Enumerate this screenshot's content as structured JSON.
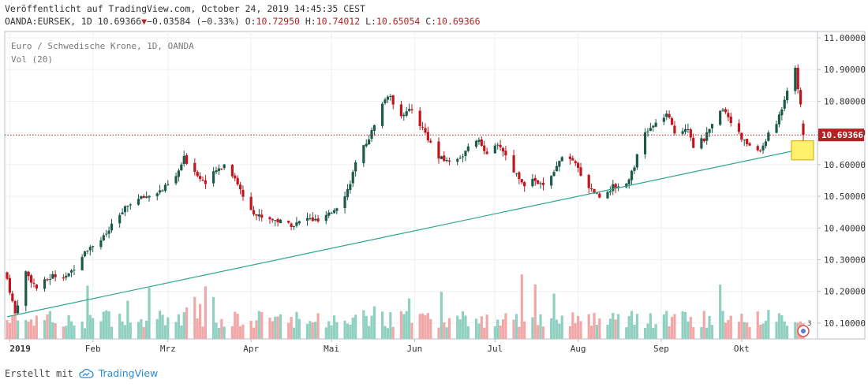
{
  "header": {
    "published": "Veröffentlicht auf TradingView.com, October 24, 2019 14:45:35 CEST",
    "symbol": "OANDA:EURSEK, 1D",
    "last": "10.69366",
    "change": "−0.03584 (−0.33%)",
    "o_label": "O:",
    "o": "10.72950",
    "h_label": "H:",
    "h": "10.74012",
    "l_label": "L:",
    "l": "10.65054",
    "c_label": "C:",
    "c": "10.69366"
  },
  "legend": {
    "line1": "Euro / Schwedische Krone, 1D, OANDA",
    "line2": "Vol (20)"
  },
  "footer": {
    "made_with": "Erstellt mit",
    "brand": "TradingView"
  },
  "colors": {
    "up": "#1d5a4b",
    "down": "#c2161f",
    "vol_up": "#8fd0c1",
    "vol_down": "#f1a8a8",
    "trendline": "#2ea590",
    "price_line": "#b22222",
    "highlight": "#fff26a"
  },
  "icons": {
    "down_arrow": "triangle-down-icon",
    "brand_logo": "tradingview-cloud-icon",
    "events": "earnings-events-icon"
  },
  "events_badge": "3",
  "chart_data": {
    "type": "candlestick",
    "title": "Euro / Schwedische Krone, 1D, OANDA",
    "x_start": "2018-12-31",
    "x_end": "2019-10-24",
    "x_ticks": [
      {
        "label": "2019",
        "date": "2019-01-01"
      },
      {
        "label": "Feb",
        "date": "2019-02-01"
      },
      {
        "label": "Mrz",
        "date": "2019-03-01"
      },
      {
        "label": "Apr",
        "date": "2019-04-01"
      },
      {
        "label": "Mai",
        "date": "2019-05-01"
      },
      {
        "label": "Jun",
        "date": "2019-06-01"
      },
      {
        "label": "Jul",
        "date": "2019-07-01"
      },
      {
        "label": "Aug",
        "date": "2019-08-01"
      },
      {
        "label": "Sep",
        "date": "2019-09-01"
      },
      {
        "label": "Okt",
        "date": "2019-10-01"
      }
    ],
    "y_ticks": [
      "11.00000",
      "10.90000",
      "10.80000",
      "10.70000",
      "10.60000",
      "10.50000",
      "10.40000",
      "10.30000",
      "10.20000",
      "10.10000"
    ],
    "ylim": [
      10.05,
      11.02
    ],
    "last_price": 10.69366,
    "last_price_label": "10.69366",
    "close_path": [
      [
        "2018-12-31",
        10.24
      ],
      [
        "2019-01-03",
        10.13
      ],
      [
        "2019-01-07",
        10.26
      ],
      [
        "2019-01-11",
        10.21
      ],
      [
        "2019-01-17",
        10.25
      ],
      [
        "2019-01-23",
        10.25
      ],
      [
        "2019-01-29",
        10.33
      ],
      [
        "2019-02-05",
        10.37
      ],
      [
        "2019-02-11",
        10.44
      ],
      [
        "2019-02-15",
        10.48
      ],
      [
        "2019-02-21",
        10.5
      ],
      [
        "2019-02-27",
        10.52
      ],
      [
        "2019-03-04",
        10.56
      ],
      [
        "2019-03-07",
        10.62
      ],
      [
        "2019-03-12",
        10.57
      ],
      [
        "2019-03-15",
        10.54
      ],
      [
        "2019-03-19",
        10.58
      ],
      [
        "2019-03-22",
        10.6
      ],
      [
        "2019-03-26",
        10.56
      ],
      [
        "2019-03-29",
        10.5
      ],
      [
        "2019-04-03",
        10.44
      ],
      [
        "2019-04-08",
        10.43
      ],
      [
        "2019-04-12",
        10.42
      ],
      [
        "2019-04-17",
        10.41
      ],
      [
        "2019-04-22",
        10.43
      ],
      [
        "2019-04-26",
        10.42
      ],
      [
        "2019-04-30",
        10.44
      ],
      [
        "2019-05-03",
        10.47
      ],
      [
        "2019-05-07",
        10.52
      ],
      [
        "2019-05-10",
        10.6
      ],
      [
        "2019-05-14",
        10.67
      ],
      [
        "2019-05-17",
        10.72
      ],
      [
        "2019-05-20",
        10.79
      ],
      [
        "2019-05-22",
        10.82
      ],
      [
        "2019-05-27",
        10.76
      ],
      [
        "2019-05-31",
        10.77
      ],
      [
        "2019-06-05",
        10.7
      ],
      [
        "2019-06-10",
        10.62
      ],
      [
        "2019-06-14",
        10.61
      ],
      [
        "2019-06-19",
        10.63
      ],
      [
        "2019-06-24",
        10.68
      ],
      [
        "2019-06-28",
        10.64
      ],
      [
        "2019-07-03",
        10.66
      ],
      [
        "2019-07-08",
        10.58
      ],
      [
        "2019-07-12",
        10.54
      ],
      [
        "2019-07-16",
        10.55
      ],
      [
        "2019-07-19",
        10.53
      ],
      [
        "2019-07-23",
        10.57
      ],
      [
        "2019-07-26",
        10.63
      ],
      [
        "2019-07-31",
        10.6
      ],
      [
        "2019-08-05",
        10.53
      ],
      [
        "2019-08-09",
        10.5
      ],
      [
        "2019-08-14",
        10.53
      ],
      [
        "2019-08-19",
        10.54
      ],
      [
        "2019-08-22",
        10.6
      ],
      [
        "2019-08-26",
        10.7
      ],
      [
        "2019-08-29",
        10.72
      ],
      [
        "2019-09-03",
        10.76
      ],
      [
        "2019-09-06",
        10.7
      ],
      [
        "2019-09-11",
        10.72
      ],
      [
        "2019-09-13",
        10.66
      ],
      [
        "2019-09-17",
        10.68
      ],
      [
        "2019-09-20",
        10.72
      ],
      [
        "2019-09-24",
        10.78
      ],
      [
        "2019-09-27",
        10.74
      ],
      [
        "2019-10-01",
        10.68
      ],
      [
        "2019-10-04",
        10.66
      ],
      [
        "2019-10-08",
        10.64
      ],
      [
        "2019-10-10",
        10.68
      ],
      [
        "2019-10-14",
        10.73
      ],
      [
        "2019-10-16",
        10.78
      ],
      [
        "2019-10-18",
        10.84
      ],
      [
        "2019-10-21",
        10.91
      ],
      [
        "2019-10-22",
        10.83
      ],
      [
        "2019-10-23",
        10.79
      ],
      [
        "2019-10-24",
        10.69366
      ]
    ],
    "volume_scale": [
      0,
      260000
    ],
    "trendline": [
      [
        "2018-12-31",
        10.12
      ],
      [
        "2019-10-24",
        10.65
      ]
    ],
    "grid": true
  }
}
